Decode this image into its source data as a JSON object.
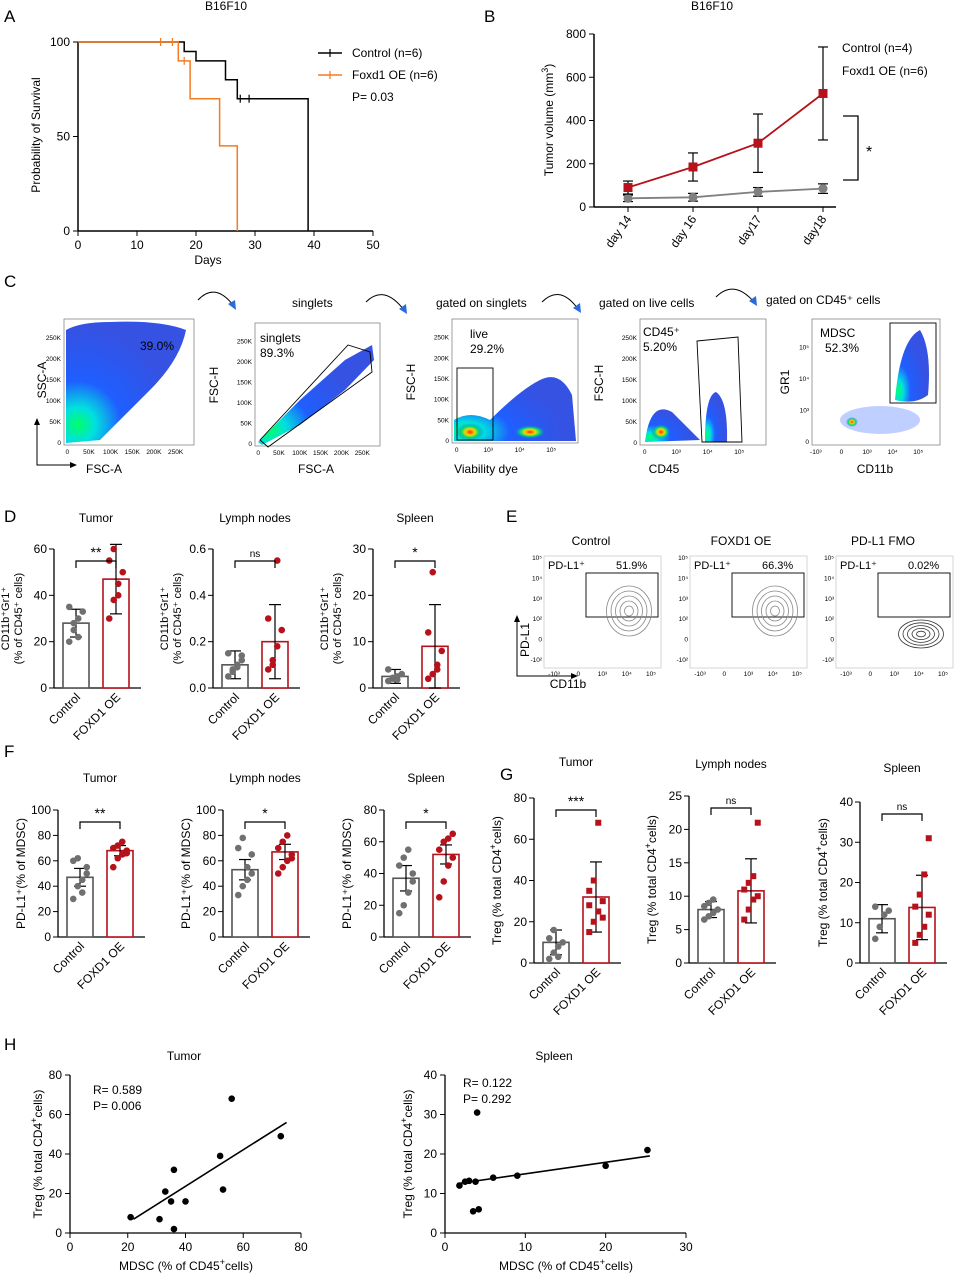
{
  "colors": {
    "black": "#000000",
    "orange": "#f47b20",
    "darkred": "#b5121b",
    "grey": "#808080",
    "flow_blue": "#1f3fe0"
  },
  "panel_letters": [
    "A",
    "B",
    "C",
    "D",
    "E",
    "F",
    "G",
    "H"
  ],
  "panel_A": {
    "title": "B16F10",
    "chart_data": {
      "type": "line",
      "title": "B16F10",
      "xlabel": "Days",
      "ylabel": "Probability of Survival",
      "xlim": [
        0,
        50
      ],
      "ylim": [
        0,
        100
      ],
      "xticks": [
        "0",
        "10",
        "20",
        "30",
        "40",
        "50"
      ],
      "yticks": [
        "0",
        "50",
        "100"
      ],
      "legend": [
        "Control (n=6)",
        "Foxd1 OE (n=6)"
      ],
      "annotation": "P= 0.03",
      "series": [
        {
          "name": "Control (n=6)",
          "color": "#000000",
          "steps": [
            [
              0,
              100
            ],
            [
              18,
              100
            ],
            [
              18,
              95
            ],
            [
              20,
              95
            ],
            [
              20,
              90
            ],
            [
              25,
              90
            ],
            [
              25,
              80
            ],
            [
              27,
              80
            ],
            [
              27,
              70
            ],
            [
              39,
              70
            ],
            [
              39,
              0
            ]
          ]
        },
        {
          "name": "Foxd1 OE (n=6)",
          "color": "#f47b20",
          "steps": [
            [
              0,
              100
            ],
            [
              17,
              100
            ],
            [
              17,
              90
            ],
            [
              19,
              90
            ],
            [
              19,
              70
            ],
            [
              24,
              70
            ],
            [
              24,
              45
            ],
            [
              27,
              45
            ],
            [
              27,
              0
            ]
          ]
        }
      ],
      "censor_marks": [
        {
          "series": 0,
          "x": 29,
          "y": 70
        },
        {
          "series": 0,
          "x": 27.5,
          "y": 70
        },
        {
          "series": 1,
          "x": 14,
          "y": 100
        },
        {
          "series": 1,
          "x": 16,
          "y": 100
        },
        {
          "series": 1,
          "x": 18,
          "y": 90
        }
      ]
    }
  },
  "panel_B": {
    "title": "B16F10",
    "chart_data": {
      "type": "line",
      "title": "B16F10",
      "ylabel_main": "Tumor volume (mm",
      "ylabel_sup": "3",
      "ylabel_close": ")",
      "categories": [
        "day 14",
        "day 16",
        "day17",
        "day18"
      ],
      "ylim": [
        0,
        800
      ],
      "yticks": [
        "0",
        "200",
        "400",
        "600",
        "800"
      ],
      "legend": [
        "Control (n=4)",
        "Foxd1 OE (n=6)"
      ],
      "significance": "*",
      "series": [
        {
          "name": "Control (n=4)",
          "color": "#808080",
          "marker": "circle",
          "values": [
            40,
            45,
            70,
            85
          ],
          "err": [
            15,
            18,
            20,
            22
          ]
        },
        {
          "name": "Foxd1 OE (n=6)",
          "color": "#b5121b",
          "marker": "square",
          "values": [
            90,
            185,
            295,
            525
          ],
          "err": [
            30,
            65,
            135,
            215
          ]
        }
      ]
    }
  },
  "panel_C": {
    "flow_plots": [
      {
        "header": "",
        "gate": "39.0%",
        "xlabel": "FSC-A",
        "ylabel": "SSC-A",
        "xticks": [
          "0",
          "50K",
          "100K",
          "150K",
          "200K",
          "250K"
        ],
        "yticks": [
          "0",
          "50K",
          "100K",
          "150K",
          "200K",
          "250K"
        ]
      },
      {
        "header": "singlets",
        "gate_name": "singlets",
        "gate": "89.3%",
        "xlabel": "FSC-A",
        "ylabel": "FSC-H",
        "xticks": [
          "0",
          "50K",
          "100K",
          "150K",
          "200K",
          "250K"
        ],
        "yticks": [
          "0",
          "50K",
          "100K",
          "150K",
          "200K",
          "250K"
        ]
      },
      {
        "header": "gated on singlets",
        "gate_name": "live",
        "gate": "29.2%",
        "xlabel": "Viability dye",
        "ylabel": "FSC-H",
        "xticks": [
          "0",
          "10³",
          "10⁴",
          "10⁵"
        ],
        "yticks": [
          "0",
          "50K",
          "100K",
          "150K",
          "200K",
          "250K"
        ]
      },
      {
        "header": "gated on live cells",
        "gate_name": "CD45⁺",
        "gate": "5.20%",
        "xlabel": "CD45",
        "ylabel": "FSC-H",
        "xticks": [
          "0",
          "10³",
          "10⁴",
          "10⁵"
        ],
        "yticks": [
          "0",
          "50K",
          "100K",
          "150K",
          "200K",
          "250K"
        ]
      },
      {
        "header": "gated on CD45⁺ cells",
        "gate_name": "MDSC",
        "gate": "52.3%",
        "xlabel": "CD11b",
        "ylabel": "GR1",
        "xticks": [
          "-10³",
          "0",
          "10³",
          "10⁴",
          "10⁵"
        ],
        "yticks": [
          "0",
          "10³",
          "10⁴",
          "10⁵"
        ]
      }
    ]
  },
  "panel_D": {
    "chart_data": [
      {
        "type": "bar",
        "title": "Tumor",
        "ylabel": [
          "CD11b⁺Gr1⁺",
          "(% of CD45⁺ cells)"
        ],
        "categories": [
          "Control",
          "FOXD1 OE"
        ],
        "ylim": [
          0,
          60
        ],
        "yticks": [
          "0",
          "20",
          "40",
          "60"
        ],
        "values": [
          28,
          47
        ],
        "err": [
          6,
          15
        ],
        "points": [
          [
            20,
            25,
            30,
            33,
            35,
            28,
            22
          ],
          [
            30,
            38,
            45,
            50,
            55,
            60,
            40
          ]
        ],
        "sig": "**"
      },
      {
        "type": "bar",
        "title": "Lymph nodes",
        "ylabel": [
          "CD11b⁺Gr1⁺",
          "(% of CD45⁺ cells)"
        ],
        "categories": [
          "Control",
          "FOXD1 OE"
        ],
        "ylim": [
          0,
          0.6
        ],
        "yticks": [
          "0.0",
          "0.2",
          "0.4",
          "0.6"
        ],
        "values": [
          0.1,
          0.2
        ],
        "err": [
          0.06,
          0.16
        ],
        "points": [
          [
            0.05,
            0.08,
            0.1,
            0.12,
            0.15,
            0.07,
            0.09,
            0.14
          ],
          [
            0.08,
            0.12,
            0.18,
            0.25,
            0.3,
            0.1,
            0.55
          ]
        ],
        "sig": "ns"
      },
      {
        "type": "bar",
        "title": "Spleen",
        "ylabel": [
          "CD11b⁺Gr1⁺",
          "(% of CD45⁺ cells)"
        ],
        "categories": [
          "Control",
          "FOXD1 OE"
        ],
        "ylim": [
          0,
          30
        ],
        "yticks": [
          "0",
          "10",
          "20",
          "30"
        ],
        "values": [
          2.5,
          9
        ],
        "err": [
          1.5,
          9
        ],
        "points": [
          [
            1.5,
            2,
            2.5,
            3,
            4,
            2.2,
            1.8
          ],
          [
            2,
            3,
            5,
            8,
            12,
            25,
            4
          ]
        ],
        "sig": "*"
      }
    ]
  },
  "panel_E": {
    "xlabel": "CD11b",
    "ylabel": "PD-L1",
    "plots": [
      {
        "title": "Control",
        "gate_label": "PD-L1⁺",
        "gate_value": "51.9%"
      },
      {
        "title": "FOXD1 OE",
        "gate_label": "PD-L1⁺",
        "gate_value": "66.3%"
      },
      {
        "title": "PD-L1 FMO",
        "gate_label": "PD-L1⁺",
        "gate_value": "0.02%"
      }
    ],
    "xticks": [
      "-10³",
      "0",
      "10³",
      "10⁴",
      "10⁵"
    ],
    "yticks": [
      "-10²",
      "0",
      "10²",
      "10³",
      "10⁴",
      "10⁵"
    ]
  },
  "panel_F": {
    "chart_data": [
      {
        "type": "bar",
        "title": "Tumor",
        "ylabel": "PD-L1⁺(% of MDSC)",
        "categories": [
          "Control",
          "FOXD1 OE"
        ],
        "ylim": [
          0,
          100
        ],
        "yticks": [
          "0",
          "20",
          "40",
          "60",
          "80",
          "100"
        ],
        "values": [
          47,
          68
        ],
        "err": [
          7,
          4
        ],
        "points": [
          [
            30,
            40,
            45,
            55,
            60,
            62,
            35,
            50
          ],
          [
            55,
            62,
            65,
            68,
            70,
            72,
            75,
            66
          ]
        ],
        "sig": "**"
      },
      {
        "type": "bar",
        "title": "Lymph nodes",
        "ylabel": "PD-L1⁺(% of MDSC)",
        "categories": [
          "Control",
          "FOXD1 OE"
        ],
        "ylim": [
          0,
          100
        ],
        "yticks": [
          "0",
          "20",
          "40",
          "60",
          "80",
          "100"
        ],
        "values": [
          53,
          67
        ],
        "err": [
          8,
          6
        ],
        "points": [
          [
            33,
            40,
            55,
            65,
            70,
            78,
            45,
            50
          ],
          [
            50,
            55,
            60,
            65,
            70,
            75,
            80,
            62
          ]
        ],
        "sig": "*"
      },
      {
        "type": "bar",
        "title": "Spleen",
        "ylabel": "PD-L1⁺(% of MDSC)",
        "categories": [
          "Control",
          "FOXD1 OE"
        ],
        "ylim": [
          0,
          80
        ],
        "yticks": [
          "0",
          "20",
          "40",
          "60",
          "80"
        ],
        "values": [
          37,
          52
        ],
        "err": [
          8,
          6
        ],
        "points": [
          [
            15,
            20,
            28,
            35,
            45,
            50,
            55,
            40
          ],
          [
            25,
            35,
            45,
            50,
            55,
            60,
            62,
            65
          ]
        ],
        "sig": "*"
      }
    ]
  },
  "panel_G": {
    "chart_data": [
      {
        "type": "bar",
        "title": "Tumor",
        "ylabel_main": "Treg (% total CD4",
        "ylabel_sup": "+",
        "ylabel_close": "cells)",
        "categories": [
          "Control",
          "FOXD1 OE"
        ],
        "ylim": [
          0,
          80
        ],
        "yticks": [
          "0",
          "20",
          "40",
          "60",
          "80"
        ],
        "values": [
          10,
          32
        ],
        "err": [
          6,
          17
        ],
        "points": [
          [
            2,
            5,
            8,
            10,
            12,
            16,
            3
          ],
          [
            15,
            20,
            25,
            30,
            35,
            40,
            68,
            22,
            28
          ]
        ],
        "sig": "***"
      },
      {
        "type": "bar",
        "title": "Lymph nodes",
        "ylabel_main": "Treg (% total CD4",
        "ylabel_sup": "+",
        "ylabel_close": "cells)",
        "categories": [
          "Control",
          "FOXD1 OE"
        ],
        "ylim": [
          0,
          25
        ],
        "yticks": [
          "0",
          "5",
          "10",
          "15",
          "20",
          "25"
        ],
        "values": [
          8,
          10.8
        ],
        "err": [
          1.2,
          4.8
        ],
        "points": [
          [
            6.5,
            7,
            7.5,
            8,
            8.5,
            9,
            9.5
          ],
          [
            6.5,
            8,
            9.5,
            10,
            11,
            12,
            13,
            21
          ]
        ],
        "sig": "ns"
      },
      {
        "type": "bar",
        "title": "Spleen",
        "ylabel_main": "Treg (% total CD4",
        "ylabel_sup": "+",
        "ylabel_close": "cells)",
        "categories": [
          "Control",
          "FOXD1 OE"
        ],
        "ylim": [
          0,
          40
        ],
        "yticks": [
          "0",
          "10",
          "20",
          "30",
          "40"
        ],
        "values": [
          11,
          13.8
        ],
        "err": [
          3.5,
          8
        ],
        "points": [
          [
            6,
            9,
            12,
            13,
            14
          ],
          [
            5,
            7,
            9,
            12,
            14,
            17,
            22,
            31
          ]
        ],
        "sig": "ns"
      }
    ]
  },
  "panel_H": {
    "chart_data": [
      {
        "type": "scatter",
        "title": "Tumor",
        "xlabel_main": "MDSC  (% of CD45",
        "xlabel_sup": "+",
        "xlabel_close": "cells)",
        "ylabel_main": "Treg (% total CD4",
        "ylabel_sup": "+",
        "ylabel_close": "cells)",
        "xlim": [
          0,
          80
        ],
        "ylim": [
          0,
          80
        ],
        "xticks": [
          "0",
          "20",
          "40",
          "60",
          "80"
        ],
        "yticks": [
          "0",
          "20",
          "40",
          "60",
          "80"
        ],
        "stats": [
          "R= 0.589",
          "P= 0.006"
        ],
        "x": [
          21,
          31,
          33,
          35,
          36,
          36,
          40,
          52,
          53,
          56,
          73
        ],
        "y": [
          8,
          7,
          21,
          16,
          32,
          2,
          16,
          39,
          22,
          68,
          49
        ],
        "fit": [
          [
            22,
            7
          ],
          [
            75,
            56
          ]
        ]
      },
      {
        "type": "scatter",
        "title": "Spleen",
        "xlabel_main": "MDSC (% of CD45",
        "xlabel_sup": "+",
        "xlabel_close": "cells)",
        "ylabel_main": "Treg (% total CD4",
        "ylabel_sup": "+",
        "ylabel_close": "cells)",
        "xlim": [
          0,
          30
        ],
        "ylim": [
          0,
          40
        ],
        "xticks": [
          "0",
          "10",
          "20",
          "30"
        ],
        "yticks": [
          "0",
          "10",
          "20",
          "30",
          "40"
        ],
        "stats": [
          "R= 0.122",
          "P= 0.292"
        ],
        "x": [
          1.8,
          2.5,
          3,
          3.5,
          3.8,
          4,
          4.2,
          6,
          9,
          20,
          25.2
        ],
        "y": [
          12,
          13,
          13.2,
          5.5,
          13,
          30.5,
          6,
          14,
          14.5,
          17,
          21
        ],
        "fit": [
          [
            1.5,
            12.5
          ],
          [
            25.5,
            19.5
          ]
        ]
      }
    ]
  }
}
